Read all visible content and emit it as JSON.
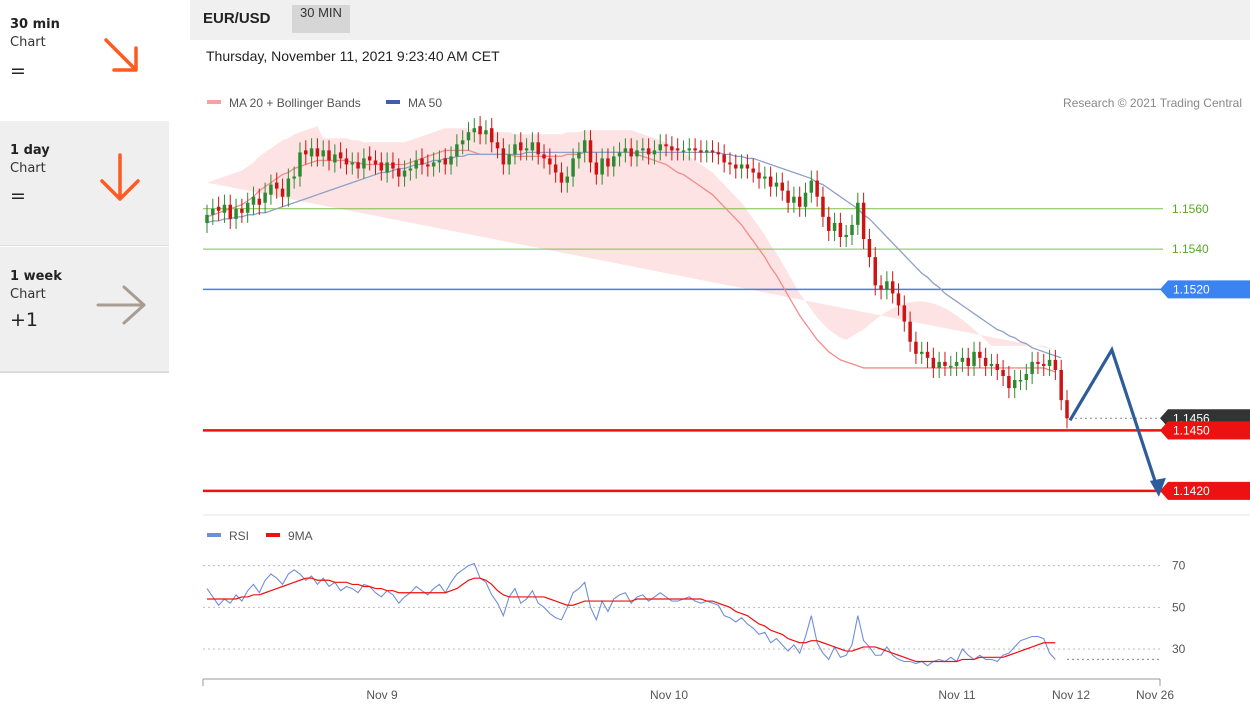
{
  "sidebar": {
    "items": [
      {
        "title": "30 min",
        "subtitle": "Chart",
        "value": "=",
        "arrow": "arrow-down-right",
        "color": "#ff5a1f"
      },
      {
        "title": "1 day",
        "subtitle": "Chart",
        "value": "=",
        "arrow": "arrow-down",
        "color": "#ff5a1f"
      },
      {
        "title": "1 week",
        "subtitle": "Chart",
        "value": "+1",
        "arrow": "arrow-right",
        "color": "#a79d93"
      }
    ]
  },
  "header": {
    "pair": "EUR/USD",
    "timeframe": "30 MIN",
    "timestamp": "Thursday, November 11, 2021 9:23:40 AM CET"
  },
  "chart_data": [
    {
      "type": "candlestick",
      "legend": [
        {
          "label": "MA 20 + Bollinger Bands",
          "color": "#f4a3a3"
        },
        {
          "label": "MA 50",
          "color": "#3d5fa8"
        }
      ],
      "credit": "Research © 2021 Trading Central",
      "colors": {
        "up": "#2f8a2f",
        "down": "#cc1414",
        "ma20": "#f08c8c",
        "bands": "#fde0e0",
        "ma50": "#8ea0c8"
      },
      "x_ticks": [
        "Nov 9",
        "Nov 10",
        "Nov 11",
        "Nov 12",
        "Nov 26"
      ],
      "price_range": [
        1.1408,
        1.1614
      ],
      "current_price": {
        "label": "1.1456",
        "value": 1.1456,
        "color": "#333333"
      },
      "levels": [
        {
          "label": "1.1560",
          "value": 1.156,
          "color": "#7cc04a",
          "style": "thin"
        },
        {
          "label": "1.1540",
          "value": 1.154,
          "color": "#7cc04a",
          "style": "thin"
        },
        {
          "label": "1.1520",
          "value": 1.152,
          "color": "#3b83f0",
          "style": "medium"
        },
        {
          "label": "1.1450",
          "value": 1.145,
          "color": "#ee1111",
          "style": "thick"
        },
        {
          "label": "1.1420",
          "value": 1.142,
          "color": "#ee1111",
          "style": "thick"
        }
      ],
      "forecast_path": [
        {
          "bar": 0,
          "price": 1.1455
        },
        {
          "bar": 8,
          "price": 1.149
        },
        {
          "bar": 17,
          "price": 1.1419
        }
      ],
      "candles_close": [
        1.1557,
        1.156,
        1.1559,
        1.1562,
        1.1555,
        1.156,
        1.1558,
        1.1563,
        1.1566,
        1.1562,
        1.1568,
        1.1572,
        1.157,
        1.1566,
        1.1575,
        1.1576,
        1.1588,
        1.1587,
        1.159,
        1.1586,
        1.1589,
        1.1584,
        1.1587,
        1.1585,
        1.1582,
        1.1583,
        1.158,
        1.1585,
        1.1584,
        1.1582,
        1.1579,
        1.1583,
        1.158,
        1.1576,
        1.1579,
        1.158,
        1.1584,
        1.1582,
        1.1581,
        1.1583,
        1.1584,
        1.1582,
        1.1586,
        1.1592,
        1.1594,
        1.1598,
        1.16,
        1.1597,
        1.1599,
        1.1593,
        1.159,
        1.1582,
        1.1587,
        1.1592,
        1.1589,
        1.159,
        1.1593,
        1.1587,
        1.1585,
        1.1582,
        1.1578,
        1.1573,
        1.1576,
        1.1585,
        1.1588,
        1.1594,
        1.1583,
        1.1577,
        1.1585,
        1.1581,
        1.1586,
        1.1588,
        1.159,
        1.1586,
        1.1589,
        1.159,
        1.1587,
        1.1589,
        1.1592,
        1.1591,
        1.1589,
        1.1589,
        1.1589,
        1.159,
        1.1589,
        1.1588,
        1.1589,
        1.1588,
        1.1587,
        1.1583,
        1.1582,
        1.158,
        1.1582,
        1.158,
        1.1578,
        1.1575,
        1.1576,
        1.1571,
        1.1573,
        1.1569,
        1.1563,
        1.1566,
        1.1561,
        1.1568,
        1.1574,
        1.1566,
        1.1556,
        1.1549,
        1.1553,
        1.1546,
        1.1547,
        1.1552,
        1.1563,
        1.1545,
        1.1536,
        1.1522,
        1.152,
        1.1524,
        1.1518,
        1.1512,
        1.1504,
        1.1494,
        1.1488,
        1.1489,
        1.1486,
        1.1481,
        1.1484,
        1.1482,
        1.1482,
        1.1484,
        1.1486,
        1.1482,
        1.1489,
        1.1486,
        1.1482,
        1.1483,
        1.148,
        1.1477,
        1.1471,
        1.1475,
        1.1475,
        1.1478,
        1.1484,
        1.1483,
        1.1482,
        1.1485,
        1.148,
        1.1465,
        1.1456
      ],
      "candles_open": [
        1.1553,
        1.1557,
        1.1561,
        1.1558,
        1.1562,
        1.1555,
        1.156,
        1.1558,
        1.1562,
        1.1565,
        1.1563,
        1.1567,
        1.1573,
        1.157,
        1.1566,
        1.1575,
        1.1576,
        1.1589,
        1.1586,
        1.159,
        1.1586,
        1.1589,
        1.1583,
        1.1588,
        1.1585,
        1.1582,
        1.1583,
        1.158,
        1.1586,
        1.1584,
        1.1583,
        1.1578,
        1.1583,
        1.158,
        1.1576,
        1.1579,
        1.158,
        1.1585,
        1.1582,
        1.1581,
        1.1583,
        1.1585,
        1.1582,
        1.1586,
        1.1592,
        1.1594,
        1.1598,
        1.1601,
        1.1597,
        1.16,
        1.1593,
        1.159,
        1.1582,
        1.1587,
        1.1593,
        1.1589,
        1.1589,
        1.1593,
        1.1587,
        1.1585,
        1.1582,
        1.1578,
        1.1573,
        1.1576,
        1.1585,
        1.1588,
        1.1594,
        1.1583,
        1.1577,
        1.1585,
        1.1581,
        1.1586,
        1.1588,
        1.159,
        1.1586,
        1.1589,
        1.159,
        1.1587,
        1.1589,
        1.1592,
        1.1591,
        1.159,
        1.1589,
        1.1589,
        1.159,
        1.1589,
        1.1588,
        1.1589,
        1.1588,
        1.1587,
        1.1583,
        1.1582,
        1.158,
        1.1582,
        1.158,
        1.1578,
        1.1575,
        1.1576,
        1.1571,
        1.1573,
        1.1569,
        1.1563,
        1.1566,
        1.1561,
        1.1568,
        1.1574,
        1.1566,
        1.1556,
        1.1549,
        1.1553,
        1.1546,
        1.1547,
        1.1552,
        1.1563,
        1.1545,
        1.1536,
        1.1522,
        1.152,
        1.1524,
        1.1518,
        1.1512,
        1.1504,
        1.1494,
        1.1488,
        1.1489,
        1.1486,
        1.1481,
        1.1484,
        1.1482,
        1.1482,
        1.1484,
        1.1486,
        1.1482,
        1.1489,
        1.1486,
        1.1482,
        1.1483,
        1.148,
        1.1477,
        1.1471,
        1.1475,
        1.1475,
        1.1478,
        1.1484,
        1.1483,
        1.1482,
        1.1485,
        1.148,
        1.1465
      ],
      "ma20": [
        1.1556,
        1.1557,
        1.1558,
        1.1559,
        1.156,
        1.1561,
        1.1562,
        1.1564,
        1.1566,
        1.1569,
        1.1571,
        1.1573,
        1.1575,
        1.1577,
        1.1578,
        1.158,
        1.1581,
        1.1582,
        1.1583,
        1.1584,
        1.1584,
        1.1584,
        1.1584,
        1.1584,
        1.1584,
        1.1583,
        1.1583,
        1.1582,
        1.1582,
        1.1582,
        1.1582,
        1.1582,
        1.1582,
        1.1582,
        1.1582,
        1.1583,
        1.1584,
        1.1585,
        1.1586,
        1.1587,
        1.1588,
        1.1589,
        1.1589,
        1.1589,
        1.1589,
        1.1589,
        1.1588,
        1.1587,
        1.1587,
        1.1587,
        1.1587,
        1.1587,
        1.1587,
        1.1586,
        1.1586,
        1.1586,
        1.1586,
        1.1586,
        1.1586,
        1.1586,
        1.1586,
        1.1586,
        1.1587,
        1.1587,
        1.1587,
        1.1588,
        1.1588,
        1.1588,
        1.1588,
        1.1588,
        1.1588,
        1.1588,
        1.1588,
        1.1588,
        1.1587,
        1.1586,
        1.1585,
        1.1584,
        1.1583,
        1.1582,
        1.158,
        1.1578,
        1.1577,
        1.1575,
        1.1573,
        1.1571,
        1.1569,
        1.1567,
        1.1564,
        1.1561,
        1.1558,
        1.1555,
        1.1552,
        1.1548,
        1.1544,
        1.154,
        1.1536,
        1.1531,
        1.1527,
        1.1522,
        1.1517,
        1.1512,
        1.1507,
        1.1503,
        1.1499,
        1.1495,
        1.1492,
        1.1489,
        1.1487,
        1.1485,
        1.1484,
        1.1483,
        1.1482,
        1.1481,
        1.1481,
        1.1481,
        1.1481,
        1.1481,
        1.1481,
        1.1481,
        1.1481,
        1.1481,
        1.1481,
        1.1481,
        1.1481,
        1.1481,
        1.1481,
        1.1481,
        1.1481,
        1.1481,
        1.1481,
        1.1481,
        1.1481,
        1.1481,
        1.1481,
        1.1481,
        1.1481,
        1.1481,
        1.1481,
        1.1481,
        1.1481,
        1.1481,
        1.1481,
        1.1481,
        1.1481,
        1.148,
        1.1479
      ],
      "ma50": [
        1.1553,
        1.1554,
        1.1554,
        1.1555,
        1.1555,
        1.1556,
        1.1556,
        1.1557,
        1.1557,
        1.1558,
        1.1558,
        1.1559,
        1.156,
        1.1561,
        1.1562,
        1.1563,
        1.1564,
        1.1565,
        1.1566,
        1.1567,
        1.1568,
        1.1569,
        1.157,
        1.1571,
        1.1572,
        1.1573,
        1.1574,
        1.1575,
        1.1576,
        1.1577,
        1.1578,
        1.1578,
        1.1579,
        1.158,
        1.158,
        1.1581,
        1.1582,
        1.1582,
        1.1583,
        1.1584,
        1.1584,
        1.1585,
        1.1585,
        1.1586,
        1.1586,
        1.1587,
        1.1587,
        1.1587,
        1.1587,
        1.1587,
        1.1587,
        1.1587,
        1.1587,
        1.1587,
        1.1587,
        1.1588,
        1.1588,
        1.1588,
        1.1588,
        1.1588,
        1.1588,
        1.1588,
        1.1588,
        1.1588,
        1.1588,
        1.1588,
        1.1588,
        1.1588,
        1.1588,
        1.1588,
        1.1588,
        1.1588,
        1.1588,
        1.1588,
        1.1588,
        1.1588,
        1.1588,
        1.1588,
        1.1588,
        1.1588,
        1.1588,
        1.1588,
        1.1588,
        1.1588,
        1.1588,
        1.1588,
        1.1588,
        1.1588,
        1.1588,
        1.1587,
        1.1587,
        1.1586,
        1.1586,
        1.1585,
        1.1585,
        1.1584,
        1.1583,
        1.1582,
        1.1581,
        1.158,
        1.1579,
        1.1578,
        1.1577,
        1.1576,
        1.1575,
        1.1573,
        1.1572,
        1.157,
        1.1568,
        1.1566,
        1.1564,
        1.1562,
        1.156,
        1.1557,
        1.1555,
        1.1552,
        1.1549,
        1.1546,
        1.1543,
        1.154,
        1.1537,
        1.1534,
        1.1531,
        1.1528,
        1.1526,
        1.1523,
        1.1521,
        1.1518,
        1.1516,
        1.1514,
        1.1512,
        1.151,
        1.1508,
        1.1506,
        1.1504,
        1.1502,
        1.15,
        1.1499,
        1.1497,
        1.1496,
        1.1494,
        1.1493,
        1.1491,
        1.149,
        1.1489,
        1.1488,
        1.1487,
        1.1486
      ]
    },
    {
      "type": "line",
      "legend": [
        {
          "label": "RSI",
          "color": "#6f8fd8"
        },
        {
          "label": "9MA",
          "color": "#ee1111"
        }
      ],
      "y_ticks": [
        "70",
        "50",
        "30"
      ],
      "y_tick_values": [
        70,
        50,
        30
      ],
      "ylim": [
        18,
        78
      ],
      "x_ticks": [
        "Nov 9",
        "Nov 10",
        "Nov 11",
        "Nov 12",
        "Nov 26"
      ],
      "rsi": [
        59,
        55,
        51,
        54,
        52,
        56,
        53,
        58,
        61,
        57,
        63,
        66,
        64,
        61,
        66,
        68,
        66,
        63,
        65,
        61,
        64,
        60,
        62,
        58,
        60,
        59,
        57,
        61,
        60,
        57,
        55,
        58,
        56,
        52,
        55,
        57,
        60,
        58,
        56,
        59,
        61,
        57,
        62,
        66,
        68,
        70,
        71,
        64,
        62,
        56,
        52,
        46,
        55,
        59,
        52,
        54,
        58,
        52,
        50,
        47,
        45,
        44,
        50,
        57,
        59,
        62,
        50,
        44,
        53,
        48,
        54,
        56,
        57,
        52,
        55,
        56,
        53,
        55,
        57,
        55,
        53,
        53,
        54,
        55,
        53,
        52,
        53,
        52,
        51,
        46,
        45,
        43,
        45,
        42,
        40,
        37,
        38,
        33,
        35,
        32,
        29,
        32,
        28,
        36,
        46,
        33,
        28,
        25,
        31,
        26,
        27,
        32,
        46,
        34,
        31,
        27,
        27,
        31,
        27,
        25,
        24,
        24,
        23,
        24,
        22,
        24,
        25,
        24,
        26,
        24,
        30,
        27,
        25,
        27,
        25,
        25,
        24,
        27,
        28,
        31,
        34,
        35,
        36,
        36,
        35,
        28,
        25
      ],
      "ma9": [
        54,
        54,
        54,
        54,
        54,
        54,
        55,
        55,
        56,
        56,
        57,
        58,
        59,
        60,
        61,
        62,
        63,
        64,
        64,
        63,
        63,
        63,
        62,
        62,
        62,
        61,
        61,
        60,
        60,
        59,
        59,
        58,
        58,
        57,
        57,
        57,
        57,
        57,
        57,
        57,
        57,
        57,
        58,
        59,
        61,
        63,
        64,
        64,
        63,
        61,
        58,
        56,
        55,
        55,
        55,
        55,
        55,
        55,
        55,
        54,
        53,
        52,
        51,
        51,
        52,
        53,
        53,
        53,
        53,
        53,
        53,
        53,
        53,
        53,
        54,
        54,
        54,
        54,
        54,
        54,
        54,
        54,
        54,
        54,
        54,
        54,
        53,
        53,
        52,
        51,
        50,
        48,
        47,
        46,
        44,
        42,
        41,
        39,
        38,
        37,
        35,
        34,
        33,
        33,
        34,
        34,
        33,
        32,
        31,
        30,
        29,
        29,
        30,
        31,
        31,
        31,
        30,
        29,
        28,
        27,
        26,
        25,
        24,
        24,
        24,
        24,
        24,
        24,
        24,
        24,
        25,
        25,
        25,
        26,
        26,
        26,
        26,
        26,
        27,
        28,
        29,
        30,
        31,
        32,
        33,
        33,
        33
      ]
    }
  ]
}
